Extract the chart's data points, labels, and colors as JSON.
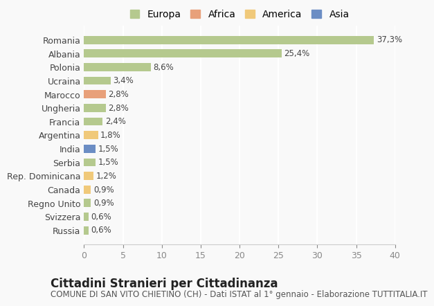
{
  "categories": [
    "Russia",
    "Svizzera",
    "Regno Unito",
    "Canada",
    "Rep. Dominicana",
    "Serbia",
    "India",
    "Argentina",
    "Francia",
    "Ungheria",
    "Marocco",
    "Ucraina",
    "Polonia",
    "Albania",
    "Romania"
  ],
  "values": [
    0.6,
    0.6,
    0.9,
    0.9,
    1.2,
    1.5,
    1.5,
    1.8,
    2.4,
    2.8,
    2.8,
    3.4,
    8.6,
    25.4,
    37.3
  ],
  "labels": [
    "0,6%",
    "0,6%",
    "0,9%",
    "0,9%",
    "1,2%",
    "1,5%",
    "1,5%",
    "1,8%",
    "2,4%",
    "2,8%",
    "2,8%",
    "3,4%",
    "8,6%",
    "25,4%",
    "37,3%"
  ],
  "colors": [
    "#b5c98e",
    "#b5c98e",
    "#b5c98e",
    "#f0c97a",
    "#f0c97a",
    "#b5c98e",
    "#6b8dc4",
    "#f0c97a",
    "#b5c98e",
    "#b5c98e",
    "#e8a07a",
    "#b5c98e",
    "#b5c98e",
    "#b5c98e",
    "#b5c98e"
  ],
  "continent": [
    "Europa",
    "Europa",
    "Europa",
    "America",
    "America",
    "Europa",
    "Asia",
    "America",
    "Europa",
    "Europa",
    "Africa",
    "Europa",
    "Europa",
    "Europa",
    "Europa"
  ],
  "legend_labels": [
    "Europa",
    "Africa",
    "America",
    "Asia"
  ],
  "legend_colors": [
    "#b5c98e",
    "#e8a07a",
    "#f0c97a",
    "#6b8dc4"
  ],
  "title": "Cittadini Stranieri per Cittadinanza",
  "subtitle": "COMUNE DI SAN VITO CHIETINO (CH) - Dati ISTAT al 1° gennaio - Elaborazione TUTTITALIA.IT",
  "xlim": [
    0,
    40
  ],
  "xticks": [
    0,
    5,
    10,
    15,
    20,
    25,
    30,
    35,
    40
  ],
  "background_color": "#f9f9f9",
  "grid_color": "#ffffff",
  "bar_height": 0.6,
  "title_fontsize": 12,
  "subtitle_fontsize": 8.5,
  "label_fontsize": 8.5,
  "tick_fontsize": 9,
  "legend_fontsize": 10
}
